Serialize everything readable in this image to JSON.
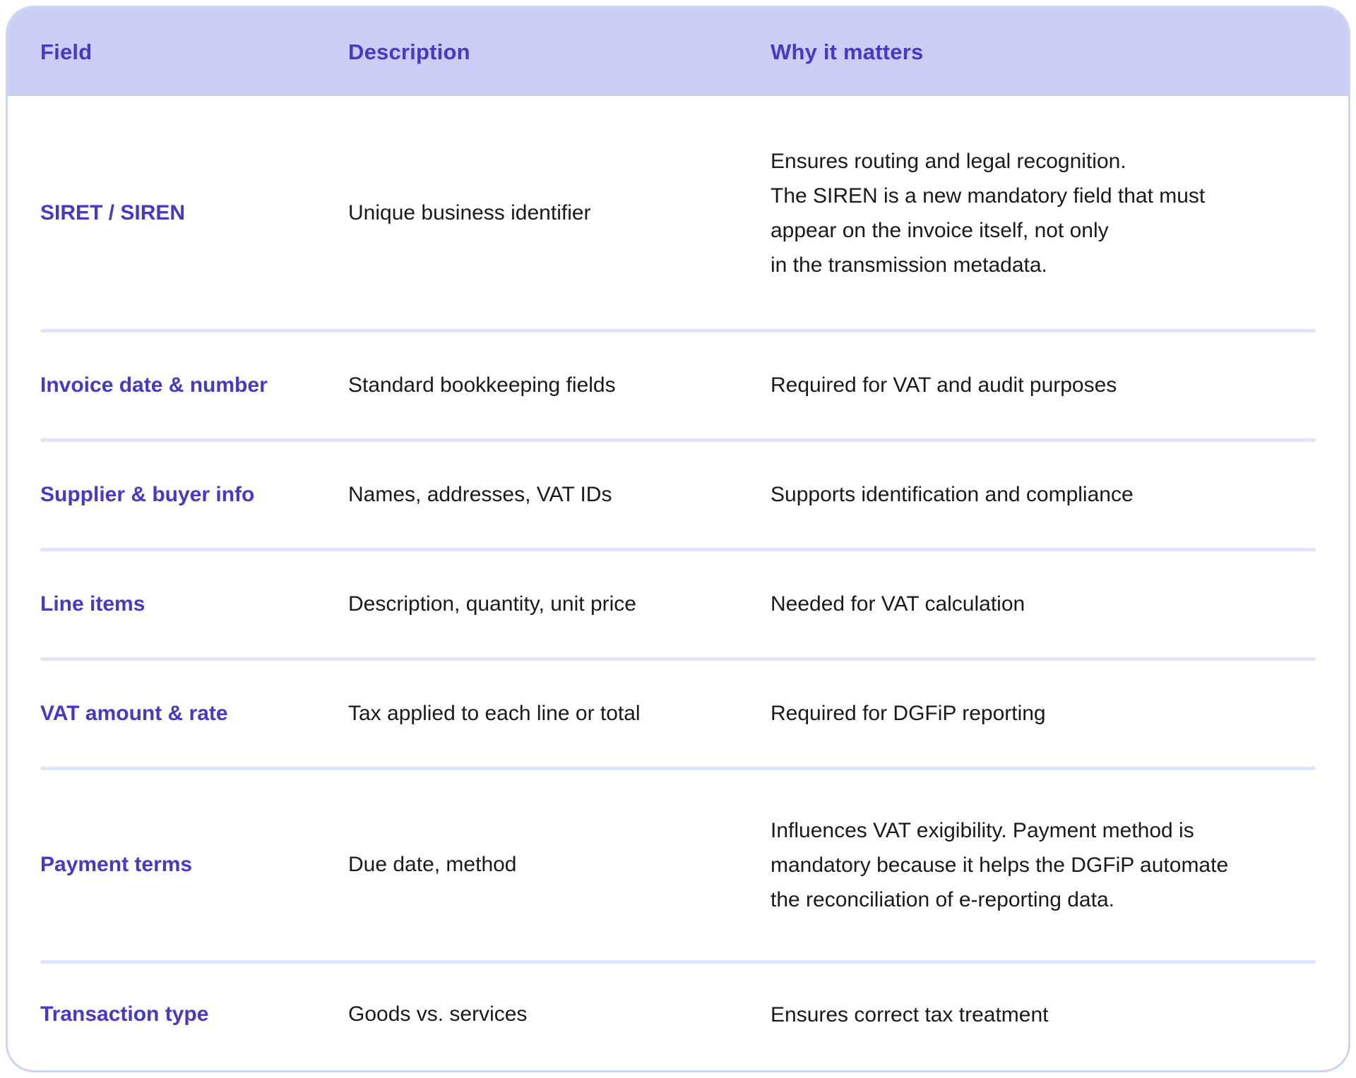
{
  "table": {
    "columns": [
      {
        "label": "Field"
      },
      {
        "label": "Description"
      },
      {
        "label": "Why it matters"
      }
    ],
    "rows": [
      {
        "field": "SIRET / SIREN",
        "description": "Unique business identifier",
        "why": "Ensures routing and legal recognition.\nThe SIREN is a new mandatory field that must\nappear on the invoice itself, not only\nin the transmission metadata."
      },
      {
        "field": "Invoice date & number",
        "description": "Standard bookkeeping fields",
        "why": "Required for VAT and audit purposes"
      },
      {
        "field": "Supplier & buyer info",
        "description": "Names, addresses, VAT IDs",
        "why": "Supports identification and compliance"
      },
      {
        "field": "Line items",
        "description": "Description, quantity, unit price",
        "why": "Needed for VAT calculation"
      },
      {
        "field": "VAT amount & rate",
        "description": "Tax applied to each line or total",
        "why": "Required for DGFiP reporting"
      },
      {
        "field": "Payment terms",
        "description": "Due date, method",
        "why": "Influences VAT exigibility. Payment method is\nmandatory because it helps the DGFiP automate\nthe reconciliation of e-reporting data."
      },
      {
        "field": "Transaction type",
        "description": "Goods vs. services",
        "why": "Ensures correct tax treatment"
      }
    ],
    "colors": {
      "header_background": "#c8cef4",
      "accent_purple": "#4539cb",
      "body_text": "#1a1a1a",
      "divider": "#dee4f9",
      "card_border": "#ccd3f3"
    }
  }
}
